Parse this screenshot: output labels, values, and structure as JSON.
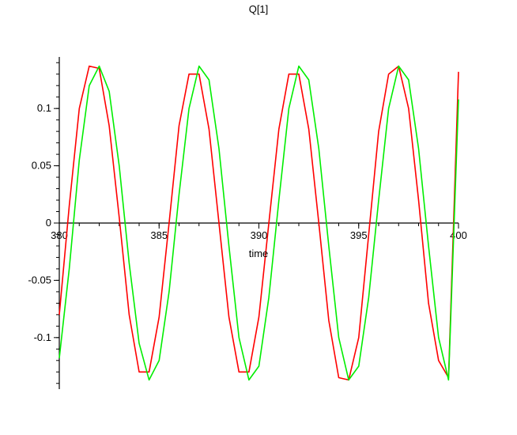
{
  "chart_data": {
    "type": "line",
    "title": "Q[1]",
    "xlabel": "time",
    "ylabel": "",
    "xlim": [
      380,
      400
    ],
    "ylim": [
      -0.145,
      0.145
    ],
    "x_ticks": [
      {
        "value": 380,
        "label": "380"
      },
      {
        "value": 385,
        "label": "385"
      },
      {
        "value": 390,
        "label": "390"
      },
      {
        "value": 395,
        "label": "395"
      },
      {
        "value": 400,
        "label": "400"
      }
    ],
    "y_ticks": [
      {
        "value": 0.1,
        "label": "0.1"
      },
      {
        "value": 0.05,
        "label": "0.05"
      },
      {
        "value": 0,
        "label": "0"
      },
      {
        "value": -0.05,
        "label": "-0.05"
      },
      {
        "value": -0.1,
        "label": "-0.1"
      }
    ],
    "grid": false,
    "legend": "none",
    "series": [
      {
        "color": "#ff0000",
        "x": [
          380,
          380.5,
          381,
          381.5,
          382,
          382.5,
          383,
          383.5,
          384,
          384.5,
          385,
          385.5,
          386,
          386.5,
          387,
          387.5,
          388,
          388.5,
          389,
          389.5,
          390,
          390.5,
          391,
          391.5,
          392,
          392.5,
          393,
          393.5,
          394,
          394.5,
          395,
          395.5,
          396,
          396.5,
          397,
          397.5,
          398,
          398.5,
          399,
          399.5,
          400
        ],
        "y": [
          -0.08,
          0.015,
          0.1,
          0.137,
          0.135,
          0.085,
          0.005,
          -0.08,
          -0.13,
          -0.13,
          -0.082,
          0.0,
          0.085,
          0.13,
          0.13,
          0.082,
          0.0,
          -0.082,
          -0.13,
          -0.13,
          -0.082,
          0.0,
          0.082,
          0.13,
          0.13,
          0.082,
          0.0,
          -0.085,
          -0.135,
          -0.137,
          -0.1,
          -0.01,
          0.08,
          0.13,
          0.137,
          0.1,
          0.02,
          -0.07,
          -0.12,
          -0.135,
          0.132
        ]
      },
      {
        "color": "#00ee00",
        "x": [
          380,
          380.5,
          381,
          381.5,
          382,
          382.5,
          383,
          383.5,
          384,
          384.5,
          385,
          385.5,
          386,
          386.5,
          387,
          387.5,
          388,
          388.5,
          389,
          389.5,
          390,
          390.5,
          391,
          391.5,
          392,
          392.5,
          393,
          393.5,
          394,
          394.5,
          395,
          395.5,
          396,
          396.5,
          397,
          397.5,
          398,
          398.5,
          399,
          399.5,
          400
        ],
        "y": [
          -0.118,
          -0.04,
          0.055,
          0.12,
          0.137,
          0.115,
          0.05,
          -0.035,
          -0.105,
          -0.137,
          -0.12,
          -0.06,
          0.025,
          0.1,
          0.137,
          0.125,
          0.065,
          -0.02,
          -0.1,
          -0.137,
          -0.125,
          -0.065,
          0.02,
          0.1,
          0.137,
          0.125,
          0.065,
          -0.02,
          -0.1,
          -0.137,
          -0.125,
          -0.065,
          0.02,
          0.1,
          0.137,
          0.125,
          0.065,
          -0.02,
          -0.1,
          -0.137,
          0.108
        ]
      }
    ]
  }
}
